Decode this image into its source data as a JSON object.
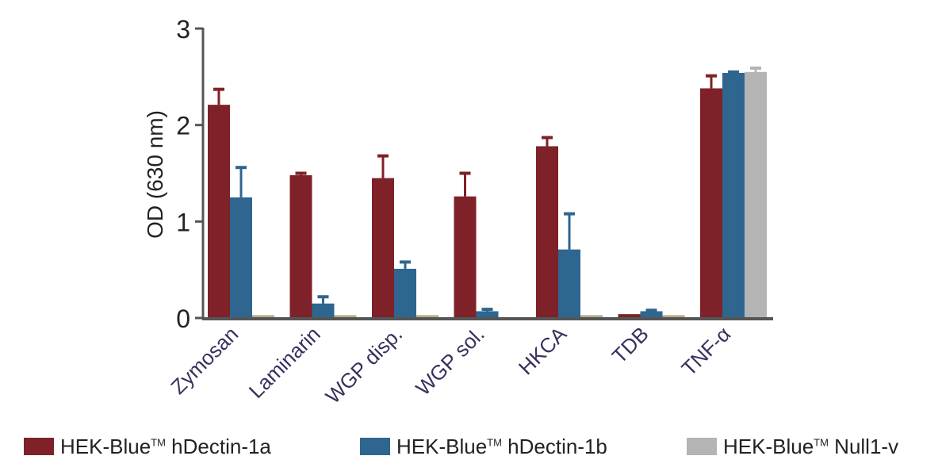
{
  "chart_data": {
    "type": "bar",
    "ylabel": "OD (630 nm)",
    "xlabel": "",
    "ylim": [
      0,
      3
    ],
    "yticks": [
      0,
      1,
      2,
      3
    ],
    "grid": false,
    "legend_position": "bottom",
    "categories": [
      "Zymosan",
      "Laminarin",
      "WGP disp.",
      "WGP sol.",
      "HKCA",
      "TDB",
      "TNF-α"
    ],
    "series": [
      {
        "name": "HEK-Blue™ hDectin-1a",
        "color": "#7f2128",
        "values": [
          2.21,
          1.48,
          1.45,
          1.26,
          1.78,
          0.04,
          2.38
        ],
        "error": [
          0.16,
          0.02,
          0.23,
          0.24,
          0.09,
          0,
          0.13
        ]
      },
      {
        "name": "HEK-Blue™ hDectin-1b",
        "color": "#2e6690",
        "values": [
          1.25,
          0.15,
          0.51,
          0.07,
          0.71,
          0.07,
          2.54
        ],
        "error": [
          0.31,
          0.07,
          0.07,
          0.02,
          0.37,
          0.01,
          0.01
        ]
      },
      {
        "name": "HEK-Blue™ Null1-v",
        "color": "#b4b4b4",
        "low_value_color": "#b6ae88",
        "values": [
          0.03,
          0.03,
          0.03,
          0,
          0.03,
          0.03,
          2.55
        ],
        "error": [
          0,
          0,
          0,
          0,
          0,
          0,
          0.04
        ]
      }
    ]
  },
  "legend": [
    {
      "prefix": "HEK-Blue",
      "tm": "TM",
      "suffix": " hDectin-1a"
    },
    {
      "prefix": "HEK-Blue",
      "tm": "TM",
      "suffix": " hDectin-1b"
    },
    {
      "prefix": "HEK-Blue",
      "tm": "TM",
      "suffix": " Null1-v"
    }
  ],
  "colors": {
    "axis": "#555555",
    "text": "#222222",
    "category_label": "#3b2f5e"
  }
}
